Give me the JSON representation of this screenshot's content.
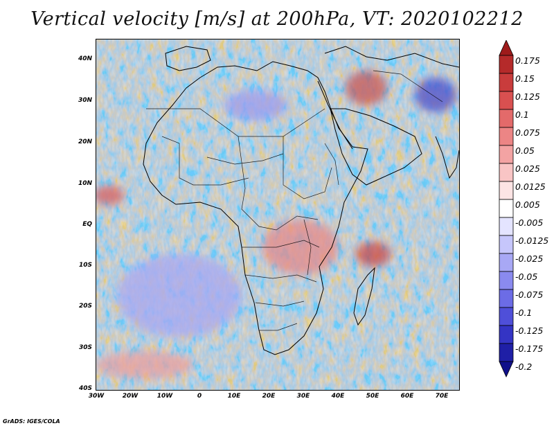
{
  "title": "Vertical velocity [m/s] at 200hPa, VT: 2020102212",
  "credit": "GrADS: IGES/COLA",
  "lat_labels": [
    "40N",
    "30N",
    "20N",
    "10N",
    "EQ",
    "10S",
    "20S",
    "30S",
    "40S"
  ],
  "lon_labels": [
    "30W",
    "20W",
    "10W",
    "0",
    "10E",
    "20E",
    "30E",
    "40E",
    "50E",
    "60E",
    "70E"
  ],
  "colorbar": {
    "levels": [
      "0.175",
      "0.15",
      "0.125",
      "0.1",
      "0.075",
      "0.05",
      "0.025",
      "0.0125",
      "0.005",
      "-0.005",
      "-0.0125",
      "-0.025",
      "-0.05",
      "-0.075",
      "-0.1",
      "-0.125",
      "-0.175",
      "-0.2"
    ],
    "colors": [
      "#9e1b1b",
      "#b52a2a",
      "#c93c3c",
      "#d95050",
      "#e36a6a",
      "#ec8585",
      "#f3a3a3",
      "#f9c5c5",
      "#fde4e4",
      "#ffffff",
      "#e4e4ff",
      "#c6c6fb",
      "#a8a8f5",
      "#8a8aef",
      "#6c6ce6",
      "#4f4fd9",
      "#3434c4",
      "#1f1fa6",
      "#10108a"
    ]
  }
}
